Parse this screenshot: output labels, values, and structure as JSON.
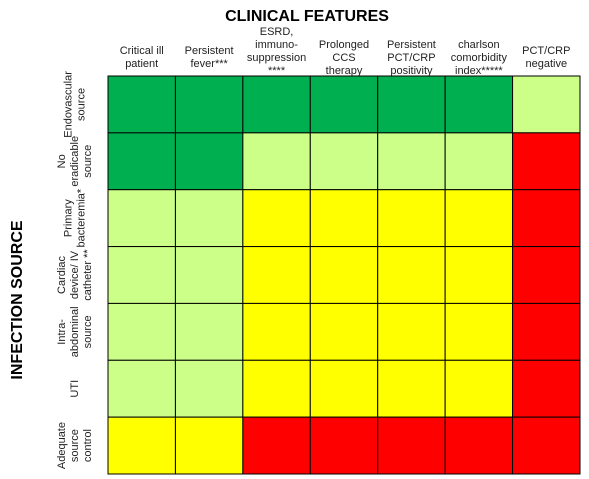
{
  "title": "CLINICAL FEATURES",
  "y_title": "INFECTION SOURCE",
  "columns": [
    [
      "Critical ill",
      "patient"
    ],
    [
      "Persistent",
      "fever***"
    ],
    [
      "ESRD,",
      "immuno-",
      "suppression",
      "****"
    ],
    [
      "Prolonged",
      "CCS",
      "therapy"
    ],
    [
      "Persistent",
      "PCT/CRP",
      "positivity"
    ],
    [
      "charlson",
      "comorbidity",
      "index*****"
    ],
    [
      "PCT/CRP",
      "negative"
    ]
  ],
  "rows": [
    {
      "label": [
        "Endovascular",
        "source"
      ],
      "cells": [
        "#00b050",
        "#00b050",
        "#00b050",
        "#00b050",
        "#00b050",
        "#00b050",
        "#ccff88"
      ]
    },
    {
      "label": [
        "No",
        "eradicable",
        "source"
      ],
      "cells": [
        "#00b050",
        "#00b050",
        "#ccff88",
        "#ccff88",
        "#ccff88",
        "#ccff88",
        "#ff0000"
      ]
    },
    {
      "label": [
        "Primary",
        "bacteremia*"
      ],
      "cells": [
        "#ccff88",
        "#ccff88",
        "#ffff00",
        "#ffff00",
        "#ffff00",
        "#ffff00",
        "#ff0000"
      ]
    },
    {
      "label": [
        "Cardiac",
        "device/ IV",
        "catheter **"
      ],
      "cells": [
        "#ccff88",
        "#ccff88",
        "#ffff00",
        "#ffff00",
        "#ffff00",
        "#ffff00",
        "#ff0000"
      ]
    },
    {
      "label": [
        "Intra-",
        "abdominal",
        "source"
      ],
      "cells": [
        "#ccff88",
        "#ccff88",
        "#ffff00",
        "#ffff00",
        "#ffff00",
        "#ffff00",
        "#ff0000"
      ]
    },
    {
      "label": [
        "UTI"
      ],
      "cells": [
        "#ccff88",
        "#ccff88",
        "#ffff00",
        "#ffff00",
        "#ffff00",
        "#ffff00",
        "#ff0000"
      ]
    },
    {
      "label": [
        "Adequate",
        "source",
        "control"
      ],
      "cells": [
        "#ffff00",
        "#ffff00",
        "#ff0000",
        "#ff0000",
        "#ff0000",
        "#ff0000",
        "#ff0000"
      ]
    }
  ]
}
